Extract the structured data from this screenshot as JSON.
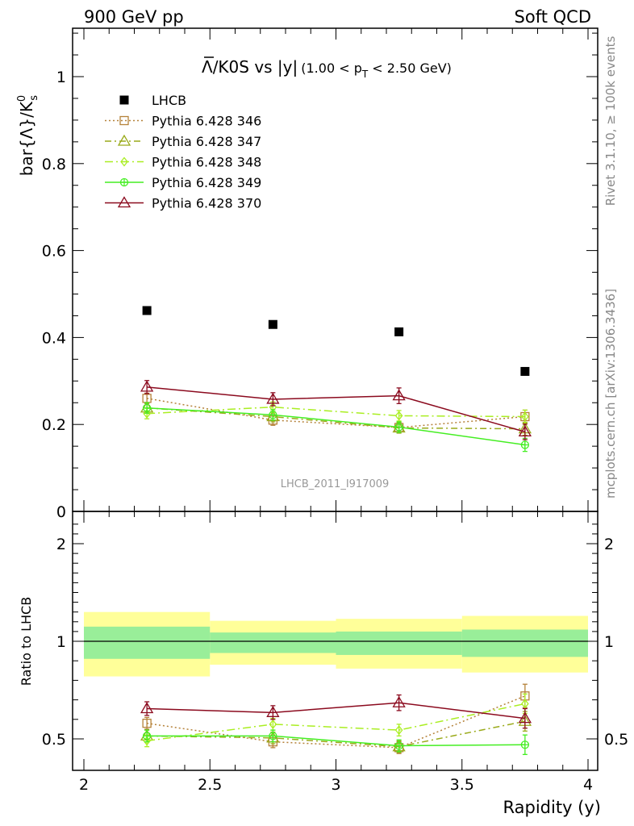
{
  "header": {
    "left": "900 GeV pp",
    "right": "Soft QCD"
  },
  "side": {
    "rivet": "Rivet 3.1.10, ≥ 100k events",
    "mcplots": "mcplots.cern.ch [arXiv:1306.3436]"
  },
  "title": {
    "overbar": "Λ",
    "main": "/K0S vs |y|",
    "sub_pre": "(1.00 < p",
    "sub_T": "T",
    "sub_post": " < 2.50 GeV)"
  },
  "ylabel_top": {
    "pre": "bar{Λ}/K",
    "sup": "0",
    "sub": "s"
  },
  "ylabel_bottom": "Ratio to LHCB",
  "xlabel": "Rapidity (y)",
  "watermark": "LHCB_2011_I917009",
  "colors": {
    "data": "#000000",
    "band_inner": "#99ee99",
    "band_outer": "#ffff99",
    "346": "#b5823a",
    "347": "#9aaa1a",
    "348": "#aaee22",
    "349": "#44ee22",
    "370": "#8b0a1e"
  },
  "chart_data": {
    "type": "scatter",
    "x": [
      2.25,
      2.75,
      3.25,
      3.75
    ],
    "x_bin_edges": [
      2.0,
      2.5,
      3.0,
      3.5,
      4.0
    ],
    "xlim": [
      2.0,
      4.0
    ],
    "xticks": [
      "2",
      "2.5",
      "3",
      "3.5",
      "4"
    ],
    "top": {
      "ylim": [
        0,
        1.12
      ],
      "yticks": [
        "0",
        "0.2",
        "0.4",
        "0.6",
        "0.8",
        "1"
      ],
      "data": {
        "name": "LHCB",
        "values": [
          0.462,
          0.43,
          0.413,
          0.322
        ]
      },
      "series": [
        {
          "key": "346",
          "name": "Pythia 6.428 346",
          "marker": "square-open",
          "style": "dotted",
          "values": [
            0.26,
            0.21,
            0.193,
            0.218
          ],
          "errors": [
            0.012,
            0.012,
            0.012,
            0.015
          ]
        },
        {
          "key": "347",
          "name": "Pythia 6.428 347",
          "marker": "triangle-open",
          "style": "dashdot",
          "values": [
            0.238,
            0.218,
            0.192,
            0.19
          ],
          "errors": [
            0.012,
            0.012,
            0.012,
            0.015
          ]
        },
        {
          "key": "348",
          "name": "Pythia 6.428 348",
          "marker": "diamond-open",
          "style": "dashdot2",
          "values": [
            0.225,
            0.24,
            0.22,
            0.218
          ],
          "errors": [
            0.012,
            0.012,
            0.012,
            0.015
          ]
        },
        {
          "key": "349",
          "name": "Pythia 6.428 349",
          "marker": "cross-circle",
          "style": "solid",
          "values": [
            0.238,
            0.222,
            0.194,
            0.153
          ],
          "errors": [
            0.012,
            0.012,
            0.012,
            0.015
          ]
        },
        {
          "key": "370",
          "name": "Pythia 6.428 370",
          "marker": "triangle-open",
          "style": "solid",
          "values": [
            0.286,
            0.258,
            0.266,
            0.183
          ],
          "errors": [
            0.015,
            0.015,
            0.018,
            0.018
          ]
        }
      ]
    },
    "ratio": {
      "ylim": [
        0.35,
        2.3
      ],
      "yticks": [
        "0.5",
        "1",
        "2"
      ],
      "band_inner": [
        [
          0.91,
          1.15
        ],
        [
          0.94,
          1.09
        ],
        [
          0.93,
          1.1
        ],
        [
          0.92,
          1.12
        ]
      ],
      "band_outer": [
        [
          0.82,
          1.3
        ],
        [
          0.88,
          1.21
        ],
        [
          0.86,
          1.23
        ],
        [
          0.84,
          1.26
        ]
      ],
      "series": [
        {
          "key": "346",
          "values": [
            0.58,
            0.485,
            0.455,
            0.72
          ],
          "errors": [
            0.03,
            0.03,
            0.03,
            0.06
          ]
        },
        {
          "key": "347",
          "values": [
            0.515,
            0.505,
            0.46,
            0.59
          ],
          "errors": [
            0.03,
            0.03,
            0.03,
            0.05
          ]
        },
        {
          "key": "348",
          "values": [
            0.49,
            0.575,
            0.545,
            0.68
          ],
          "errors": [
            0.03,
            0.03,
            0.03,
            0.05
          ]
        },
        {
          "key": "349",
          "values": [
            0.515,
            0.515,
            0.465,
            0.47
          ],
          "errors": [
            0.03,
            0.03,
            0.03,
            0.05
          ]
        },
        {
          "key": "370",
          "values": [
            0.655,
            0.635,
            0.685,
            0.605
          ],
          "errors": [
            0.035,
            0.035,
            0.04,
            0.05
          ]
        }
      ]
    }
  }
}
